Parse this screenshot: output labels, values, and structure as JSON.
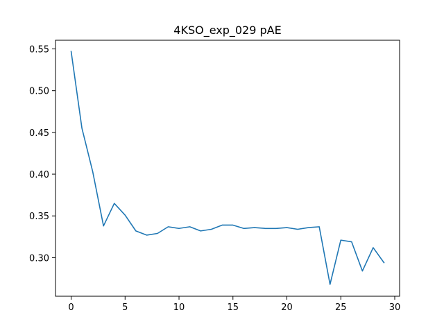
{
  "chart_data": {
    "type": "line",
    "title": "4KSO_exp_029 pAE",
    "xlabel": "",
    "ylabel": "",
    "xlim": [
      -1.45,
      30.45
    ],
    "ylim": [
      0.2538,
      0.5604
    ],
    "grid": false,
    "legend": "none",
    "xticks": [
      0,
      5,
      10,
      15,
      20,
      25,
      30
    ],
    "yticks": [
      0.3,
      0.35,
      0.4,
      0.45,
      0.5,
      0.55
    ],
    "ytick_labels": [
      "0.30",
      "0.35",
      "0.40",
      "0.45",
      "0.50",
      "0.55"
    ],
    "line_color": "#1f77b4",
    "series": [
      {
        "x": [
          0,
          1,
          2,
          3,
          4,
          5,
          6,
          7,
          8,
          9,
          10,
          11,
          12,
          13,
          14,
          15,
          16,
          17,
          18,
          19,
          20,
          21,
          22,
          23,
          24,
          25,
          26,
          27,
          28,
          29
        ],
        "values": [
          0.547,
          0.455,
          0.403,
          0.338,
          0.365,
          0.351,
          0.332,
          0.327,
          0.329,
          0.337,
          0.335,
          0.337,
          0.332,
          0.334,
          0.339,
          0.339,
          0.335,
          0.336,
          0.335,
          0.335,
          0.336,
          0.334,
          0.336,
          0.337,
          0.268,
          0.321,
          0.319,
          0.284,
          0.312,
          0.294
        ]
      }
    ]
  }
}
